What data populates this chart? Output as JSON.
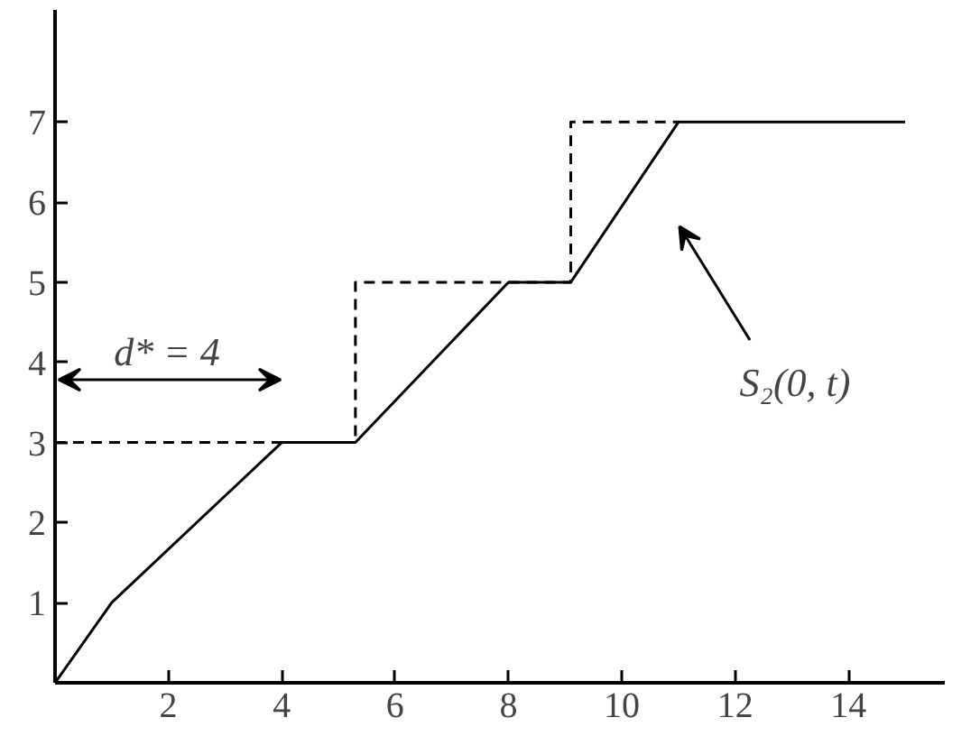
{
  "chart_data": {
    "type": "line",
    "xlim": [
      0,
      15.7
    ],
    "ylim": [
      0,
      8.4
    ],
    "xticks": [
      2,
      4,
      6,
      8,
      10,
      12,
      14
    ],
    "yticks": [
      1,
      2,
      3,
      4,
      5,
      6,
      7
    ],
    "grid": false,
    "marker": "none",
    "series": [
      {
        "color": "#000000",
        "line_style": "solid",
        "x": [
          0,
          1,
          4,
          5.3,
          8,
          9.1,
          11,
          15
        ],
        "values": [
          0,
          1,
          3,
          3,
          5,
          5,
          7,
          7
        ]
      },
      {
        "color": "#000000",
        "line_style": "dashed",
        "x": [
          0,
          5.3,
          5.3,
          9.1,
          9.1,
          11
        ],
        "values": [
          3,
          3,
          5,
          5,
          7,
          7
        ]
      }
    ],
    "annotations": [
      "d* = 4",
      "S₂(0, t)"
    ]
  }
}
